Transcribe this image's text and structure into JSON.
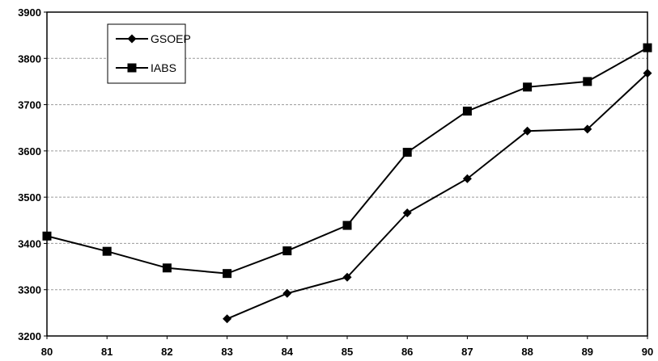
{
  "chart_data": {
    "type": "line",
    "title": "",
    "xlabel": "",
    "ylabel": "",
    "x": [
      "80",
      "81",
      "82",
      "83",
      "84",
      "85",
      "86",
      "87",
      "88",
      "89",
      "90"
    ],
    "ylim": [
      3200,
      3900
    ],
    "yticks": [
      3200,
      3300,
      3400,
      3500,
      3600,
      3700,
      3800,
      3900
    ],
    "grid": "horizontal dashed",
    "legend_position": "top-left",
    "series": [
      {
        "name": "GSOEP",
        "marker": "diamond",
        "color": "#000000",
        "values": [
          null,
          null,
          null,
          3237,
          3292,
          3327,
          3466,
          3540,
          3643,
          3647,
          3768
        ]
      },
      {
        "name": "IABS",
        "marker": "square",
        "color": "#000000",
        "values": [
          3416,
          3383,
          3347,
          3335,
          3384,
          3439,
          3597,
          3686,
          3738,
          3750,
          3823
        ]
      }
    ]
  }
}
